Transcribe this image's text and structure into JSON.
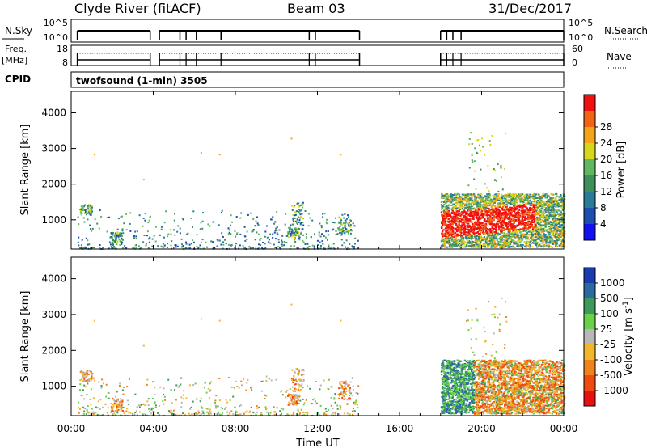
{
  "header": {
    "station": "Clyde River (fitACF)",
    "beam": "Beam 03",
    "date": "31/Dec/2017"
  },
  "top_panels": {
    "nsky_label": "N.Sky",
    "nsky_ticks": [
      "10^5",
      "10^0"
    ],
    "nsearch_label": "N.Search",
    "nsearch_ticks": [
      "10^5",
      "10^0"
    ],
    "freq_label": "Freq.",
    "freq_unit": "[MHz]",
    "freq_ticks": [
      "18",
      "8"
    ],
    "nave_label": "Nave",
    "nave_ticks": [
      "60",
      "0"
    ],
    "cpid_label": "CPID",
    "cpid_value": "twofsound (1-min) 3505"
  },
  "colors": {
    "power_scale": [
      "#1010f0",
      "#1a4fb0",
      "#2a7a9a",
      "#3f8f5a",
      "#5fb85f",
      "#d6d61a",
      "#f4a31a",
      "#f06414",
      "#f01010"
    ],
    "velocity_scale": [
      "#e81010",
      "#f04a10",
      "#f0821a",
      "#f0b82a",
      "#b8b8b8",
      "#6ad04a",
      "#3c9a5a",
      "#2a6aa0",
      "#1a3ab0"
    ]
  },
  "chart_data": [
    {
      "type": "heatmap",
      "title": "",
      "xlabel": "",
      "ylabel": "Slant Range [km]",
      "x_ticks": [
        "00:00",
        "04:00",
        "08:00",
        "12:00",
        "16:00",
        "20:00",
        "00:00"
      ],
      "x_range_hours": [
        0,
        24
      ],
      "y_ticks": [
        "1000",
        "2000",
        "3000",
        "4000"
      ],
      "ylim": [
        180,
        4600
      ],
      "colorbar": {
        "label": "Power [dB]",
        "ticks": [
          "4",
          "8",
          "12",
          "16",
          "20",
          "24",
          "28"
        ],
        "range": [
          0,
          30
        ]
      },
      "features": [
        {
          "time_hours": [
            0.3,
            14.0
          ],
          "range_km": [
            180,
            1400
          ],
          "value": 7,
          "note": "sparse scatter"
        },
        {
          "time_hours": [
            18.0,
            24.0
          ],
          "range_km": [
            250,
            1700
          ],
          "value": 18
        },
        {
          "time_hours": [
            18.2,
            22.5
          ],
          "range_km": [
            500,
            1200
          ],
          "value": 28
        }
      ]
    },
    {
      "type": "heatmap",
      "title": "",
      "xlabel": "Time UT",
      "ylabel": "Slant Range [km]",
      "x_ticks": [
        "00:00",
        "04:00",
        "08:00",
        "12:00",
        "16:00",
        "20:00",
        "00:00"
      ],
      "x_range_hours": [
        0,
        24
      ],
      "y_ticks": [
        "1000",
        "2000",
        "3000",
        "4000"
      ],
      "ylim": [
        180,
        4600
      ],
      "colorbar": {
        "label": "Velocity [m s^-1]",
        "ticks": [
          "1000",
          "500",
          "100",
          "25",
          "-25",
          "-100",
          "-500",
          "-1000"
        ],
        "range": [
          -1000,
          1000
        ]
      },
      "features": [
        {
          "time_hours": [
            0.3,
            14.0
          ],
          "range_km": [
            180,
            1400
          ],
          "value": -100,
          "note": "sparse scatter"
        },
        {
          "time_hours": [
            18.0,
            24.0
          ],
          "range_km": [
            250,
            1700
          ],
          "value": -500
        },
        {
          "time_hours": [
            18.2,
            19.5
          ],
          "range_km": [
            500,
            1400
          ],
          "value": 100
        }
      ]
    }
  ]
}
